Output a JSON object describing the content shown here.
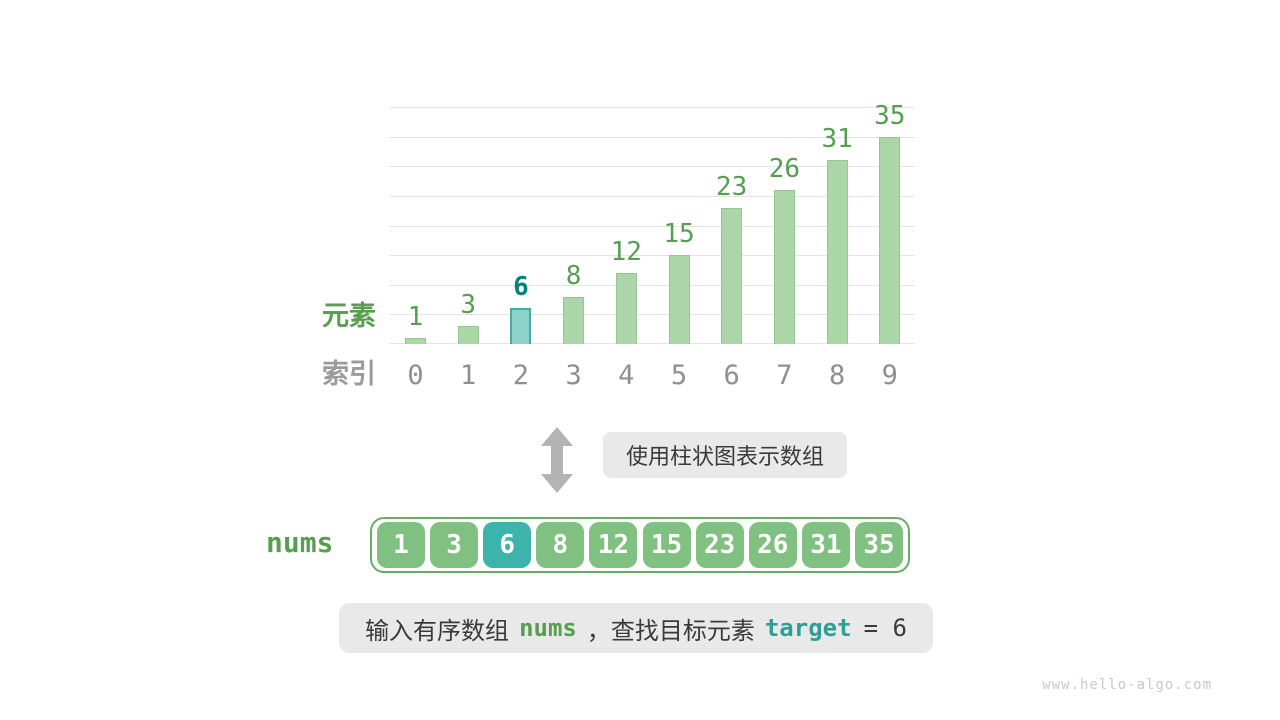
{
  "page": {
    "watermark": "www.hello-algo.com",
    "background": "#ffffff"
  },
  "chart_data": {
    "type": "bar",
    "categories": [
      "0",
      "1",
      "2",
      "3",
      "4",
      "5",
      "6",
      "7",
      "8",
      "9"
    ],
    "values": [
      1,
      3,
      6,
      8,
      12,
      15,
      23,
      26,
      31,
      35
    ],
    "highlight_index": 2,
    "highlight_value": 6,
    "title": "",
    "xlabel": "索引",
    "ylabel": "元素",
    "ylim": [
      0,
      40
    ],
    "gridline_step": 5,
    "grid": true,
    "legend_position": "none"
  },
  "transform": {
    "caption": "使用柱状图表示数组"
  },
  "array_row": {
    "label": "nums",
    "values": [
      "1",
      "3",
      "6",
      "8",
      "12",
      "15",
      "23",
      "26",
      "31",
      "35"
    ],
    "highlight_index": 2
  },
  "statement": {
    "part1": "输入有序数组",
    "code1": "nums",
    "part2": "，查找目标元素",
    "code2": "target",
    "part3": "= 6"
  },
  "colors": {
    "bar_fill": "#abd6a8",
    "bar_border": "#93c690",
    "bar_highlight_fill": "#8ed2c9",
    "bar_highlight_border": "#45aca2",
    "value_label": "#579e51",
    "value_label_highlight": "#00837b",
    "index_label": "#8f8f8f",
    "axis_label_green": "#579e51",
    "axis_label_gray": "#9b9b9b",
    "gridline": "#e4e4e4",
    "arrow": "#b3b3b3",
    "caption_bg": "#e9e9e9",
    "text_dark": "#3a3a3a",
    "cell_green": "#80c081",
    "cell_teal": "#3cb3ab",
    "cell_text": "#ffffff",
    "container_border": "#67ad67",
    "code_green": "#579e51",
    "code_teal": "#2e9e97",
    "watermark": "#c2cbc6"
  }
}
